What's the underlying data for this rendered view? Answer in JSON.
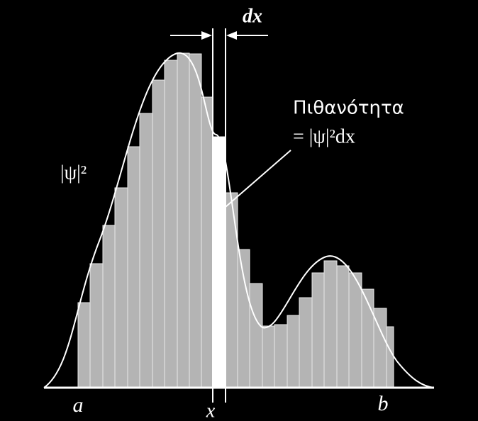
{
  "labels": {
    "dx": "dx",
    "probability": "Πιθανότητα",
    "probability_formula": "= |ψ|²dx",
    "psi_squared": "|ψ|²",
    "a": "a",
    "x": "x",
    "b": "b"
  }
}
